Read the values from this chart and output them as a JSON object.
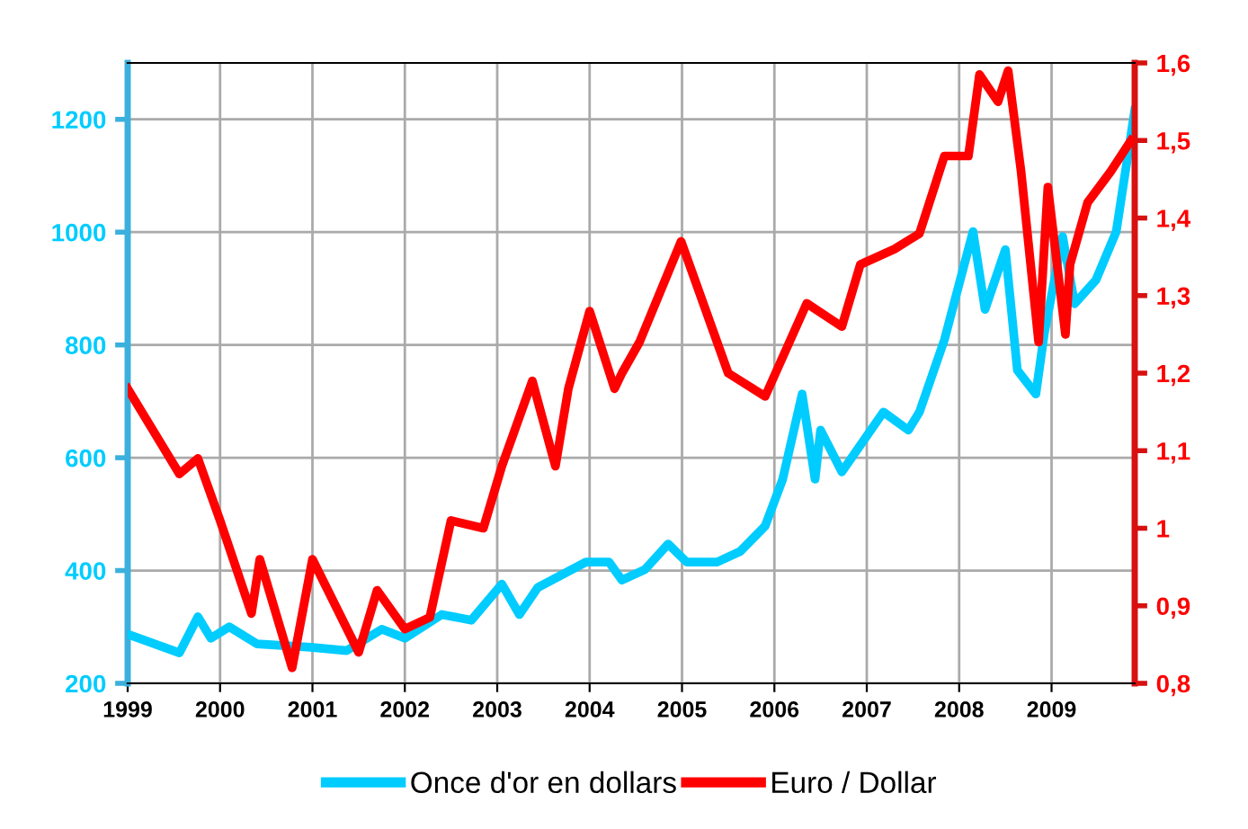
{
  "chart_data": {
    "type": "line",
    "xlim": [
      1999,
      2009.9
    ],
    "xticks": [
      1999,
      2000,
      2001,
      2002,
      2003,
      2004,
      2005,
      2006,
      2007,
      2008,
      2009
    ],
    "ylim": [
      200,
      1300
    ],
    "yticks": [
      200,
      400,
      600,
      800,
      1000,
      1200
    ],
    "y2lim": [
      0.8,
      1.6
    ],
    "y2ticks": [
      {
        "value": 0.8,
        "label": "0,8"
      },
      {
        "value": 0.9,
        "label": "0,9"
      },
      {
        "value": 1,
        "label": "1"
      },
      {
        "value": 1.1,
        "label": "1,1"
      },
      {
        "value": 1.2,
        "label": "1,2"
      },
      {
        "value": 1.3,
        "label": "1,3"
      },
      {
        "value": 1.4,
        "label": "1,4"
      },
      {
        "value": 1.5,
        "label": "1,5"
      },
      {
        "value": 1.6,
        "label": "1,6"
      }
    ],
    "grid": true,
    "legend": "bottom",
    "marker": "none",
    "line_style": "solid",
    "series": [
      {
        "name": "Once d'or en dollars",
        "color": "#00ccff",
        "x": [
          1999.0,
          1999.56,
          1999.76,
          1999.9,
          2000.1,
          2000.4,
          2000.98,
          2001.37,
          2001.75,
          2002.0,
          2002.4,
          2002.72,
          2003.05,
          2003.24,
          2003.44,
          2003.96,
          2004.21,
          2004.35,
          2004.6,
          2004.85,
          2005.05,
          2005.38,
          2005.63,
          2005.9,
          2006.09,
          2006.3,
          2006.44,
          2006.5,
          2006.73,
          2007.18,
          2007.45,
          2007.57,
          2007.84,
          2008.03,
          2008.15,
          2008.28,
          2008.5,
          2008.63,
          2008.83,
          2008.92,
          2009.12,
          2009.25,
          2009.48,
          2009.7,
          2009.9
        ],
        "values": [
          287,
          254,
          318,
          280,
          300,
          270,
          264,
          258,
          296,
          280,
          322,
          312,
          376,
          322,
          370,
          415,
          415,
          383,
          402,
          447,
          415,
          415,
          434,
          479,
          562,
          713,
          562,
          649,
          575,
          681,
          649,
          681,
          809,
          927,
          1001,
          863,
          969,
          755,
          713,
          819,
          992,
          873,
          915,
          1001,
          1216
        ]
      },
      {
        "name": "Euro / Dollar",
        "color": "#ff0000",
        "axis": "y2",
        "x": [
          1999.0,
          1999.56,
          1999.76,
          2000.0,
          2000.34,
          2000.43,
          2000.78,
          2001.0,
          2001.5,
          2001.7,
          2002.0,
          2002.27,
          2002.5,
          2002.85,
          2003.05,
          2003.38,
          2003.63,
          2003.77,
          2004.0,
          2004.27,
          2004.35,
          2004.54,
          2004.99,
          2005.5,
          2005.9,
          2006.35,
          2006.73,
          2006.93,
          2007.3,
          2007.57,
          2007.84,
          2008.1,
          2008.22,
          2008.42,
          2008.53,
          2008.67,
          2008.86,
          2008.96,
          2009.15,
          2009.2,
          2009.39,
          2009.64,
          2009.86
        ],
        "values": [
          1.18,
          1.07,
          1.09,
          1.01,
          0.89,
          0.96,
          0.82,
          0.96,
          0.84,
          0.92,
          0.87,
          0.885,
          1.01,
          1.0,
          1.08,
          1.19,
          1.08,
          1.18,
          1.28,
          1.18,
          1.2,
          1.24,
          1.37,
          1.2,
          1.17,
          1.29,
          1.26,
          1.34,
          1.36,
          1.38,
          1.48,
          1.48,
          1.585,
          1.55,
          1.59,
          1.46,
          1.24,
          1.44,
          1.25,
          1.34,
          1.42,
          1.46,
          1.5
        ]
      }
    ]
  }
}
